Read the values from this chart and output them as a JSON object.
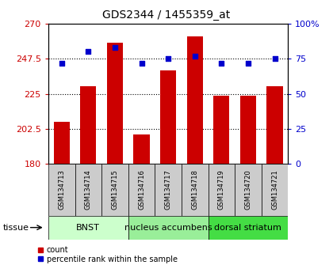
{
  "title": "GDS2344 / 1455359_at",
  "samples": [
    "GSM134713",
    "GSM134714",
    "GSM134715",
    "GSM134716",
    "GSM134717",
    "GSM134718",
    "GSM134719",
    "GSM134720",
    "GSM134721"
  ],
  "counts": [
    207,
    230,
    258,
    199,
    240,
    262,
    224,
    224,
    230
  ],
  "percentiles": [
    72,
    80,
    83,
    72,
    75,
    77,
    72,
    72,
    75
  ],
  "ylim_left": [
    180,
    270
  ],
  "ylim_right": [
    0,
    100
  ],
  "yticks_left": [
    180,
    202.5,
    225,
    247.5,
    270
  ],
  "yticks_right": [
    0,
    25,
    50,
    75,
    100
  ],
  "bar_color": "#cc0000",
  "dot_color": "#0000cc",
  "tissue_groups": [
    {
      "label": "BNST",
      "start": 0,
      "end": 3,
      "color": "#ccffcc"
    },
    {
      "label": "nucleus accumbens",
      "start": 3,
      "end": 6,
      "color": "#99ee99"
    },
    {
      "label": "dorsal striatum",
      "start": 6,
      "end": 9,
      "color": "#44dd44"
    }
  ],
  "tissue_label": "tissue",
  "legend_count_label": "count",
  "legend_percentile_label": "percentile rank within the sample",
  "bar_color_legend": "#cc0000",
  "dot_color_legend": "#0000cc",
  "bar_width": 0.6,
  "tick_label_color_left": "#cc0000",
  "tick_label_color_right": "#0000cc",
  "sample_box_color": "#cccccc",
  "title_fontsize": 10,
  "tick_fontsize": 8,
  "sample_fontsize": 6,
  "tissue_fontsize": 8,
  "legend_fontsize": 7
}
